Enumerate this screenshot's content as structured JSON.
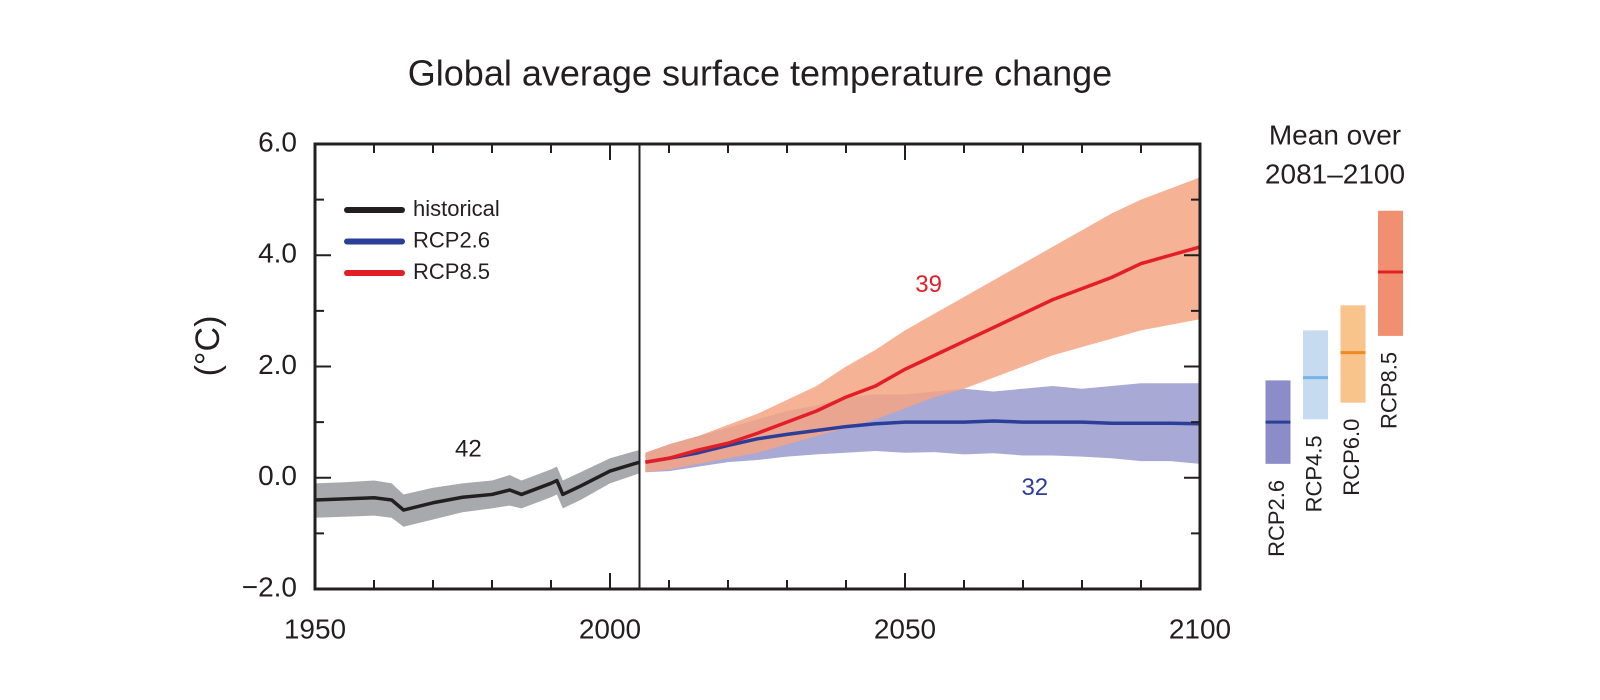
{
  "chart_data": {
    "type": "line",
    "title": "Global average surface temperature change",
    "y_label": "(°C)",
    "xlim": [
      1950,
      2100
    ],
    "ylim": [
      -2,
      6
    ],
    "xticks": [
      1950,
      2000,
      2050,
      2100
    ],
    "xticks_minor": [
      1960,
      1970,
      1980,
      1990,
      2010,
      2020,
      2030,
      2040,
      2060,
      2070,
      2080,
      2090
    ],
    "yticks": [
      {
        "value": 6,
        "label": "6.0"
      },
      {
        "value": 4,
        "label": "4.0"
      },
      {
        "value": 2,
        "label": "2.0"
      },
      {
        "value": 0,
        "label": "0.0"
      },
      {
        "value": -2,
        "label": "−2.0"
      }
    ],
    "yticks_minor": [
      -1,
      1,
      3,
      5
    ],
    "reference_line": 2005,
    "legend": "upper left",
    "series": [
      {
        "name": "historical",
        "color": "#231f20",
        "band_color": "#a7a9ac",
        "x": [
          1950,
          1955,
          1960,
          1963,
          1965,
          1970,
          1975,
          1980,
          1983,
          1985,
          1990,
          1991,
          1992,
          1995,
          2000,
          2005
        ],
        "values": [
          -0.4,
          -0.38,
          -0.36,
          -0.4,
          -0.58,
          -0.45,
          -0.35,
          -0.3,
          -0.22,
          -0.3,
          -0.1,
          -0.05,
          -0.3,
          -0.15,
          0.12,
          0.28
        ],
        "lower": [
          -0.72,
          -0.7,
          -0.68,
          -0.72,
          -0.88,
          -0.75,
          -0.62,
          -0.55,
          -0.5,
          -0.55,
          -0.35,
          -0.3,
          -0.55,
          -0.4,
          -0.1,
          0.08
        ],
        "upper": [
          -0.1,
          -0.08,
          -0.05,
          -0.1,
          -0.3,
          -0.18,
          -0.1,
          -0.05,
          0.05,
          -0.05,
          0.15,
          0.2,
          -0.05,
          0.1,
          0.35,
          0.5
        ]
      },
      {
        "name": "RCP2.6",
        "color": "#2b3f98",
        "band_color": "#8c8cc8",
        "x": [
          2006,
          2010,
          2015,
          2020,
          2025,
          2030,
          2035,
          2040,
          2045,
          2050,
          2055,
          2060,
          2065,
          2070,
          2075,
          2080,
          2085,
          2090,
          2095,
          2100
        ],
        "values": [
          0.28,
          0.35,
          0.45,
          0.58,
          0.7,
          0.78,
          0.85,
          0.92,
          0.97,
          1.0,
          1.0,
          1.0,
          1.02,
          1.0,
          1.0,
          1.0,
          0.98,
          0.98,
          0.98,
          0.97
        ],
        "lower": [
          0.1,
          0.12,
          0.2,
          0.28,
          0.32,
          0.38,
          0.42,
          0.45,
          0.48,
          0.45,
          0.46,
          0.42,
          0.44,
          0.4,
          0.4,
          0.38,
          0.35,
          0.3,
          0.3,
          0.25
        ],
        "upper": [
          0.45,
          0.6,
          0.75,
          0.9,
          1.05,
          1.2,
          1.3,
          1.45,
          1.5,
          1.5,
          1.55,
          1.6,
          1.55,
          1.6,
          1.65,
          1.6,
          1.65,
          1.7,
          1.7,
          1.7
        ]
      },
      {
        "name": "RCP8.5",
        "color": "#e41e26",
        "band_color": "#f4a482",
        "x": [
          2006,
          2010,
          2015,
          2020,
          2025,
          2030,
          2035,
          2040,
          2045,
          2050,
          2055,
          2060,
          2065,
          2070,
          2075,
          2080,
          2085,
          2090,
          2095,
          2100
        ],
        "values": [
          0.28,
          0.35,
          0.5,
          0.62,
          0.8,
          1.0,
          1.2,
          1.45,
          1.65,
          1.95,
          2.2,
          2.45,
          2.7,
          2.95,
          3.2,
          3.4,
          3.6,
          3.85,
          4.0,
          4.15
        ],
        "lower": [
          0.1,
          0.15,
          0.25,
          0.35,
          0.45,
          0.6,
          0.75,
          0.9,
          1.05,
          1.25,
          1.45,
          1.6,
          1.8,
          2.0,
          2.2,
          2.35,
          2.5,
          2.65,
          2.75,
          2.85
        ],
        "upper": [
          0.45,
          0.6,
          0.75,
          0.95,
          1.15,
          1.4,
          1.65,
          2.0,
          2.3,
          2.65,
          2.95,
          3.25,
          3.55,
          3.85,
          4.15,
          4.45,
          4.75,
          5.0,
          5.2,
          5.4
        ]
      }
    ],
    "annotations": [
      {
        "text": "42",
        "x": 1976,
        "y": 0.5,
        "color": "#231f20"
      },
      {
        "text": "39",
        "x": 2054,
        "y": 3.45,
        "color": "#e41e26"
      },
      {
        "text": "32",
        "x": 2072,
        "y": -0.2,
        "color": "#2b3f98"
      }
    ],
    "side_title": [
      "Mean over",
      "2081–2100"
    ],
    "ranges": [
      {
        "name": "RCP2.6",
        "color": "#8c8cc8",
        "line_color": "#2b3f98",
        "low": 0.25,
        "mean": 1.0,
        "high": 1.75
      },
      {
        "name": "RCP4.5",
        "color": "#c6dbf0",
        "line_color": "#73b4e6",
        "low": 1.05,
        "mean": 1.8,
        "high": 2.65
      },
      {
        "name": "RCP6.0",
        "color": "#f9c38c",
        "line_color": "#f08a1e",
        "low": 1.35,
        "mean": 2.25,
        "high": 3.1
      },
      {
        "name": "RCP8.5",
        "color": "#f09070",
        "line_color": "#e41e26",
        "low": 2.55,
        "mean": 3.7,
        "high": 4.8
      }
    ]
  }
}
